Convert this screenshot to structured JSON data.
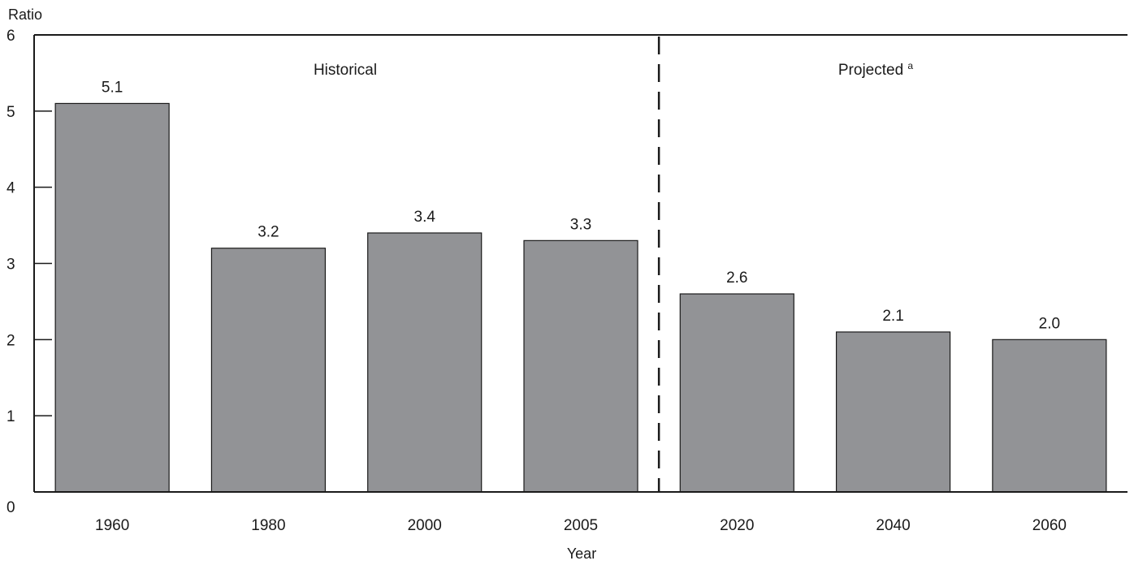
{
  "chart_data": {
    "type": "bar",
    "categories": [
      "1960",
      "1980",
      "2000",
      "2005",
      "2020",
      "2040",
      "2060"
    ],
    "values": [
      5.1,
      3.2,
      3.4,
      3.3,
      2.6,
      2.1,
      2.0
    ],
    "value_labels": [
      "5.1",
      "3.2",
      "3.4",
      "3.3",
      "2.6",
      "2.1",
      "2.0"
    ],
    "title": "",
    "xlabel": "Year",
    "ylabel": "Ratio",
    "ylim": [
      0,
      6
    ],
    "yticks": [
      "0",
      "1",
      "2",
      "3",
      "4",
      "5",
      "6"
    ],
    "grid": false,
    "bar_color": "#929396",
    "regions": [
      {
        "label": "Historical",
        "footnote": "",
        "categories": [
          "1960",
          "1980",
          "2000",
          "2005"
        ]
      },
      {
        "label": "Projected",
        "footnote": "a",
        "categories": [
          "2020",
          "2040",
          "2060"
        ]
      }
    ],
    "divider": "dashed line between 2005 and 2020"
  }
}
